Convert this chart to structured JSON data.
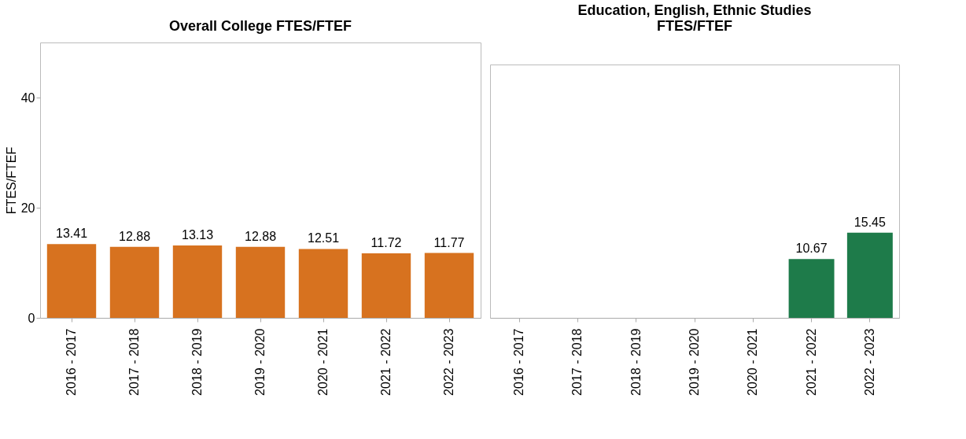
{
  "chart_data": [
    {
      "type": "bar",
      "title": "Overall College FTES/FTEF",
      "ylabel": "FTES/FTEF",
      "categories": [
        "2016 - 2017",
        "2017 - 2018",
        "2018 - 2019",
        "2019 - 2020",
        "2020 - 2021",
        "2021 - 2022",
        "2022 - 2023"
      ],
      "series": [
        {
          "color": "#d7721f",
          "values": [
            13.41,
            12.88,
            13.13,
            12.88,
            12.51,
            11.72,
            11.77
          ]
        }
      ],
      "ylim": [
        0,
        50
      ],
      "yticks": [
        0,
        20,
        40
      ],
      "data_labels": true,
      "grid": false
    },
    {
      "type": "bar",
      "title": "Education, English, Ethnic Studies FTES/FTEF",
      "categories": [
        "2016 - 2017",
        "2017 - 2018",
        "2018 - 2019",
        "2019 - 2020",
        "2020 - 2021",
        "2021 - 2022",
        "2022 - 2023"
      ],
      "series": [
        {
          "color": "#1e7b4a",
          "values": [
            null,
            null,
            null,
            null,
            null,
            10.67,
            15.45
          ]
        }
      ],
      "ylim": [
        0,
        46
      ],
      "yticks": [
        0,
        20,
        40
      ],
      "tick_labels": "x",
      "data_labels": true,
      "grid": false
    }
  ]
}
